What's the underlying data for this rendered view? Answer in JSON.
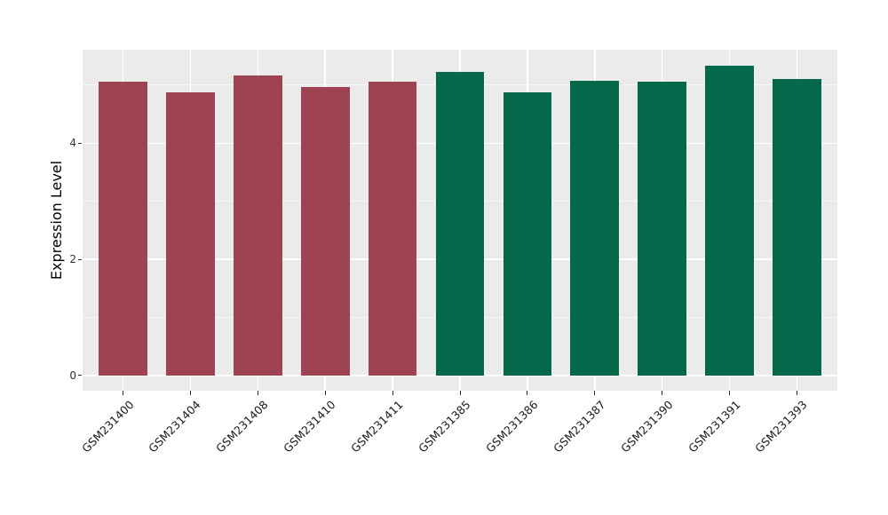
{
  "chart_data": {
    "type": "bar",
    "title": "",
    "xlabel": "",
    "ylabel": "Expression Level",
    "categories": [
      "GSM231400",
      "GSM231404",
      "GSM231408",
      "GSM231410",
      "GSM231411",
      "GSM231385",
      "GSM231386",
      "GSM231387",
      "GSM231390",
      "GSM231391",
      "GSM231393"
    ],
    "values": [
      5.06,
      4.88,
      5.16,
      4.97,
      5.06,
      5.23,
      4.87,
      5.08,
      5.06,
      5.33,
      5.11
    ],
    "groups": [
      "group1",
      "group1",
      "group1",
      "group1",
      "group1",
      "group2",
      "group2",
      "group2",
      "group2",
      "group2",
      "group2"
    ],
    "group_colors": {
      "group1": "#9D4351",
      "group2": "#04694A"
    },
    "yticks": [
      0,
      2,
      4
    ],
    "yticks_minor": [
      1,
      3,
      5
    ],
    "ylim": [
      -0.26,
      5.61
    ],
    "xlim": [
      0.4,
      11.6
    ],
    "bar_width": 0.72,
    "grid": true,
    "legend": "none",
    "x_labels_rotation_deg": -45,
    "panel_bg": "#EBEBEB",
    "figure_bg": "#FFFFFF",
    "tick_color": "#333333"
  }
}
